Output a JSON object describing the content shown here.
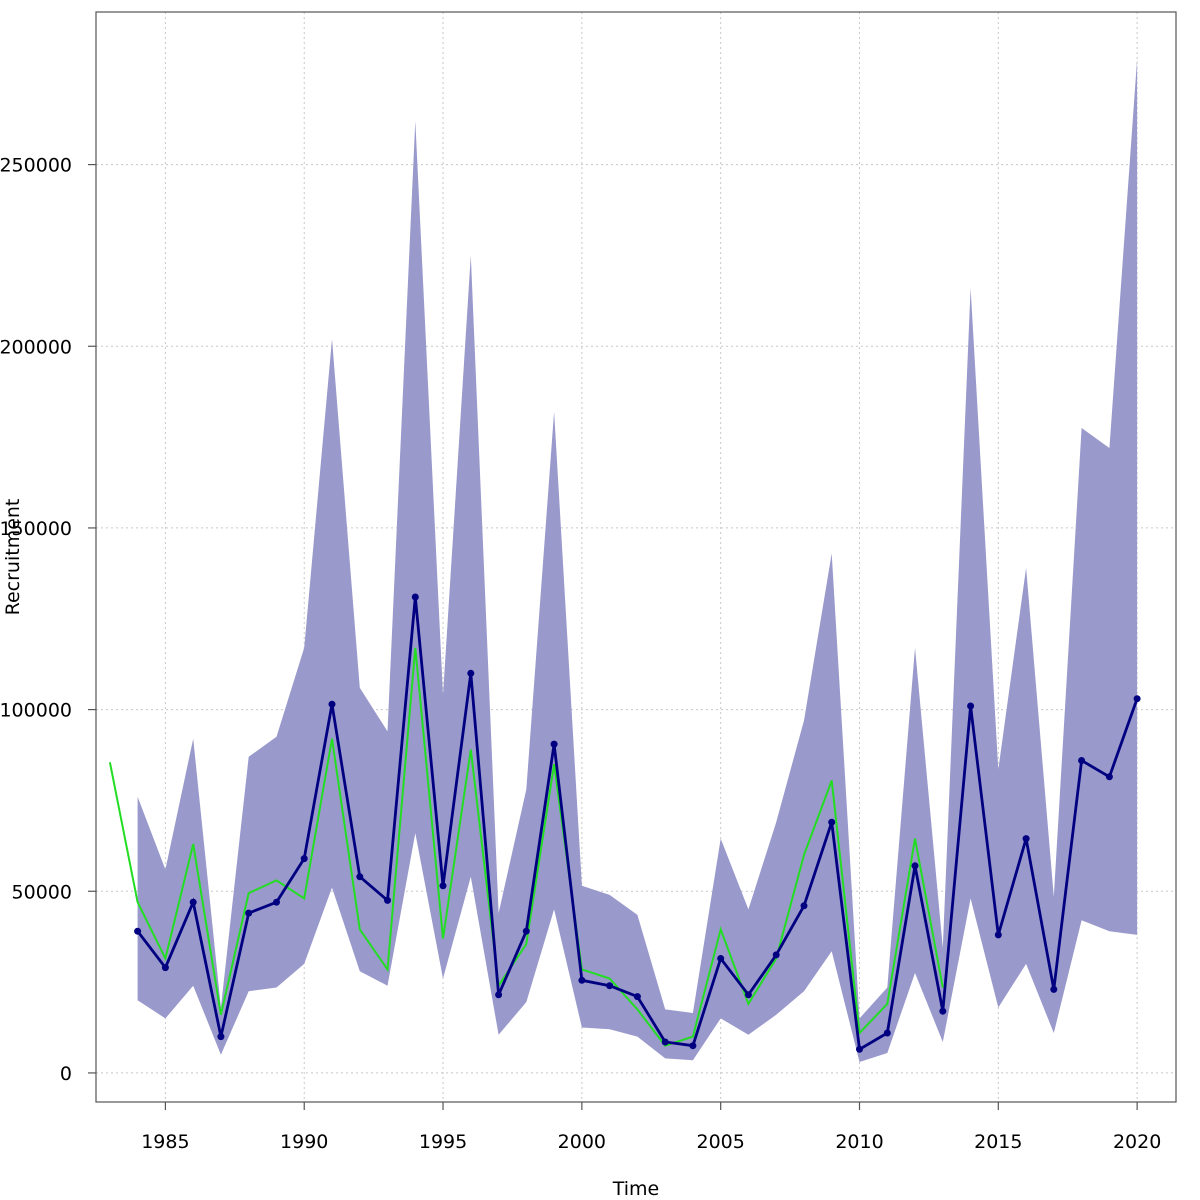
{
  "chart_data": {
    "type": "line",
    "title": "",
    "xlabel": "Time",
    "ylabel": "Recruitment",
    "xlim": [
      1982.5,
      2021.4
    ],
    "ylim": [
      -8000,
      292000
    ],
    "x_ticks": [
      1985,
      1990,
      1995,
      2000,
      2005,
      2010,
      2015,
      2020
    ],
    "y_ticks": [
      0,
      50000,
      100000,
      150000,
      200000,
      250000
    ],
    "y_tick_labels": [
      "0",
      "50000",
      "100000",
      "150000",
      "200000",
      "250000"
    ],
    "grid": true,
    "colors": {
      "band": "#9999cc",
      "estimate": "#000080",
      "observed": "#22dd22"
    },
    "series": [
      {
        "kind": "band",
        "x": [
          1984,
          1985,
          1986,
          1987,
          1988,
          1989,
          1990,
          1991,
          1992,
          1993,
          1994,
          1995,
          1996,
          1997,
          1998,
          1999,
          2000,
          2001,
          2002,
          2003,
          2004,
          2005,
          2006,
          2007,
          2008,
          2009,
          2010,
          2011,
          2012,
          2013,
          2014,
          2015,
          2016,
          2017,
          2018,
          2019,
          2020
        ],
        "lower": [
          20000,
          15000,
          24000,
          5000,
          22500,
          23500,
          30000,
          51000,
          28000,
          24000,
          66000,
          26000,
          54000,
          10500,
          19500,
          45000,
          12500,
          12000,
          10000,
          4000,
          3500,
          15000,
          10500,
          16000,
          22500,
          33500,
          3000,
          5500,
          27500,
          8500,
          48000,
          18000,
          30000,
          11000,
          42000,
          39000,
          38000
        ],
        "upper": [
          76000,
          56000,
          92000,
          18000,
          87000,
          92500,
          117000,
          202000,
          106000,
          94000,
          262000,
          104000,
          225000,
          44000,
          78000,
          182000,
          51500,
          49000,
          43500,
          17500,
          16500,
          64500,
          45000,
          69000,
          97000,
          143000,
          15000,
          23500,
          117000,
          34500,
          216000,
          83500,
          139000,
          48500,
          177500,
          172000,
          279000
        ]
      },
      {
        "kind": "line",
        "x": [
          1984,
          1985,
          1986,
          1987,
          1988,
          1989,
          1990,
          1991,
          1992,
          1993,
          1994,
          1995,
          1996,
          1997,
          1998,
          1999,
          2000,
          2001,
          2002,
          2003,
          2004,
          2005,
          2006,
          2007,
          2008,
          2009,
          2010,
          2011,
          2012,
          2013,
          2014,
          2015,
          2016,
          2017,
          2018,
          2019,
          2020
        ],
        "values": [
          39000,
          29000,
          47000,
          10000,
          44000,
          47000,
          59000,
          101500,
          54000,
          47500,
          131000,
          51500,
          110000,
          21500,
          39000,
          90500,
          25500,
          24000,
          21000,
          8500,
          7500,
          31500,
          21500,
          32500,
          46000,
          69000,
          6500,
          11000,
          57000,
          17000,
          101000,
          38000,
          64500,
          23000,
          86000,
          81500,
          103000
        ]
      },
      {
        "kind": "line",
        "x": [
          1983,
          1984,
          1985,
          1986,
          1987,
          1988,
          1989,
          1990,
          1991,
          1992,
          1993,
          1994,
          1995,
          1996,
          1997,
          1998,
          1999,
          2000,
          2001,
          2002,
          2003,
          2004,
          2005,
          2006,
          2007,
          2008,
          2009,
          2010,
          2011,
          2012,
          2013
        ],
        "values": [
          85500,
          47000,
          31500,
          63000,
          16000,
          49500,
          53000,
          48000,
          92000,
          39500,
          28500,
          117000,
          37000,
          89000,
          24000,
          35500,
          85000,
          28500,
          26000,
          17500,
          7500,
          10000,
          39500,
          19000,
          31500,
          60000,
          80500,
          11000,
          19000,
          64500,
          23500
        ]
      }
    ]
  }
}
